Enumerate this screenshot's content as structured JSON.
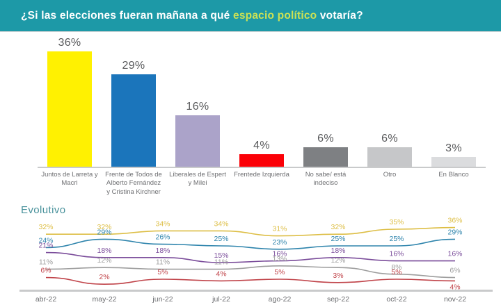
{
  "header": {
    "title_prefix": "¿Si las elecciones fueran mañana a qué ",
    "title_highlight": "espacio político",
    "title_suffix": " votaría?",
    "bg_color": "#1D99A7",
    "highlight_color": "#CDE253"
  },
  "evolutivo": {
    "title": "Evolutivo"
  },
  "chart_data": [
    {
      "type": "bar",
      "title": "¿Si las elecciones fueran mañana a qué espacio político votaría?",
      "categories": [
        "Juntos de Larreta y Macri",
        "Frente de Todos de Alberto Fernández y Cristina Kirchner",
        "Liberales de Espert y Milei",
        "Frentede Izquierda",
        "No sabe/ está indeciso",
        "Otro",
        "En Blanco"
      ],
      "category_lines": [
        [
          "Juntos de Larreta y",
          "Macri"
        ],
        [
          "Frente de Todos de",
          "Alberto Fernández",
          "y Cristina Kirchner"
        ],
        [
          "Liberales de Espert",
          "y Milei"
        ],
        [
          "Frentede Izquierda"
        ],
        [
          "No sabe/ está",
          "indeciso"
        ],
        [
          "Otro"
        ],
        [
          "En Blanco"
        ]
      ],
      "values": [
        36,
        29,
        16,
        4,
        6,
        6,
        3
      ],
      "value_labels": [
        "36%",
        "29%",
        "16%",
        "4%",
        "6%",
        "6%",
        "3%"
      ],
      "colors": [
        "#FFF101",
        "#1B75BB",
        "#ABA3C9",
        "#FB0007",
        "#7E8083",
        "#C6C7C9",
        "#DBDCDE"
      ],
      "ylim": [
        0,
        40
      ],
      "grid": false,
      "legend": false,
      "axis_color": "#C9CACB"
    },
    {
      "type": "line",
      "title": "Evolutivo",
      "x": [
        "abr-22",
        "may-22",
        "jun-22",
        "jul-22",
        "ago-22",
        "sep-22",
        "oct-22",
        "nov-22"
      ],
      "series": [
        {
          "name": "Juntos de Larreta y Macri",
          "color": "#DDBE45",
          "values": [
            32,
            32,
            34,
            34,
            31,
            32,
            35,
            36
          ]
        },
        {
          "name": "Frente de Todos",
          "color": "#2E84AC",
          "values": [
            24,
            29,
            26,
            25,
            23,
            25,
            25,
            29
          ]
        },
        {
          "name": "Liberales de Espert y Milei",
          "color": "#7A4C9A",
          "values": [
            21,
            18,
            18,
            15,
            16,
            18,
            16,
            16
          ]
        },
        {
          "name": "No sabe/ está indeciso",
          "color": "#9D9D9D",
          "values": [
            11,
            12,
            11,
            11,
            13,
            12,
            8,
            6
          ]
        },
        {
          "name": "Frentede Izquierda",
          "color": "#C04349",
          "values": [
            6,
            2,
            5,
            4,
            5,
            3,
            5,
            4
          ],
          "label_below_indices": [
            7
          ]
        }
      ],
      "ylim": [
        0,
        40
      ],
      "grid": false,
      "legend": false,
      "axis_color": "#C9CACB",
      "label_suffix": "%"
    }
  ]
}
